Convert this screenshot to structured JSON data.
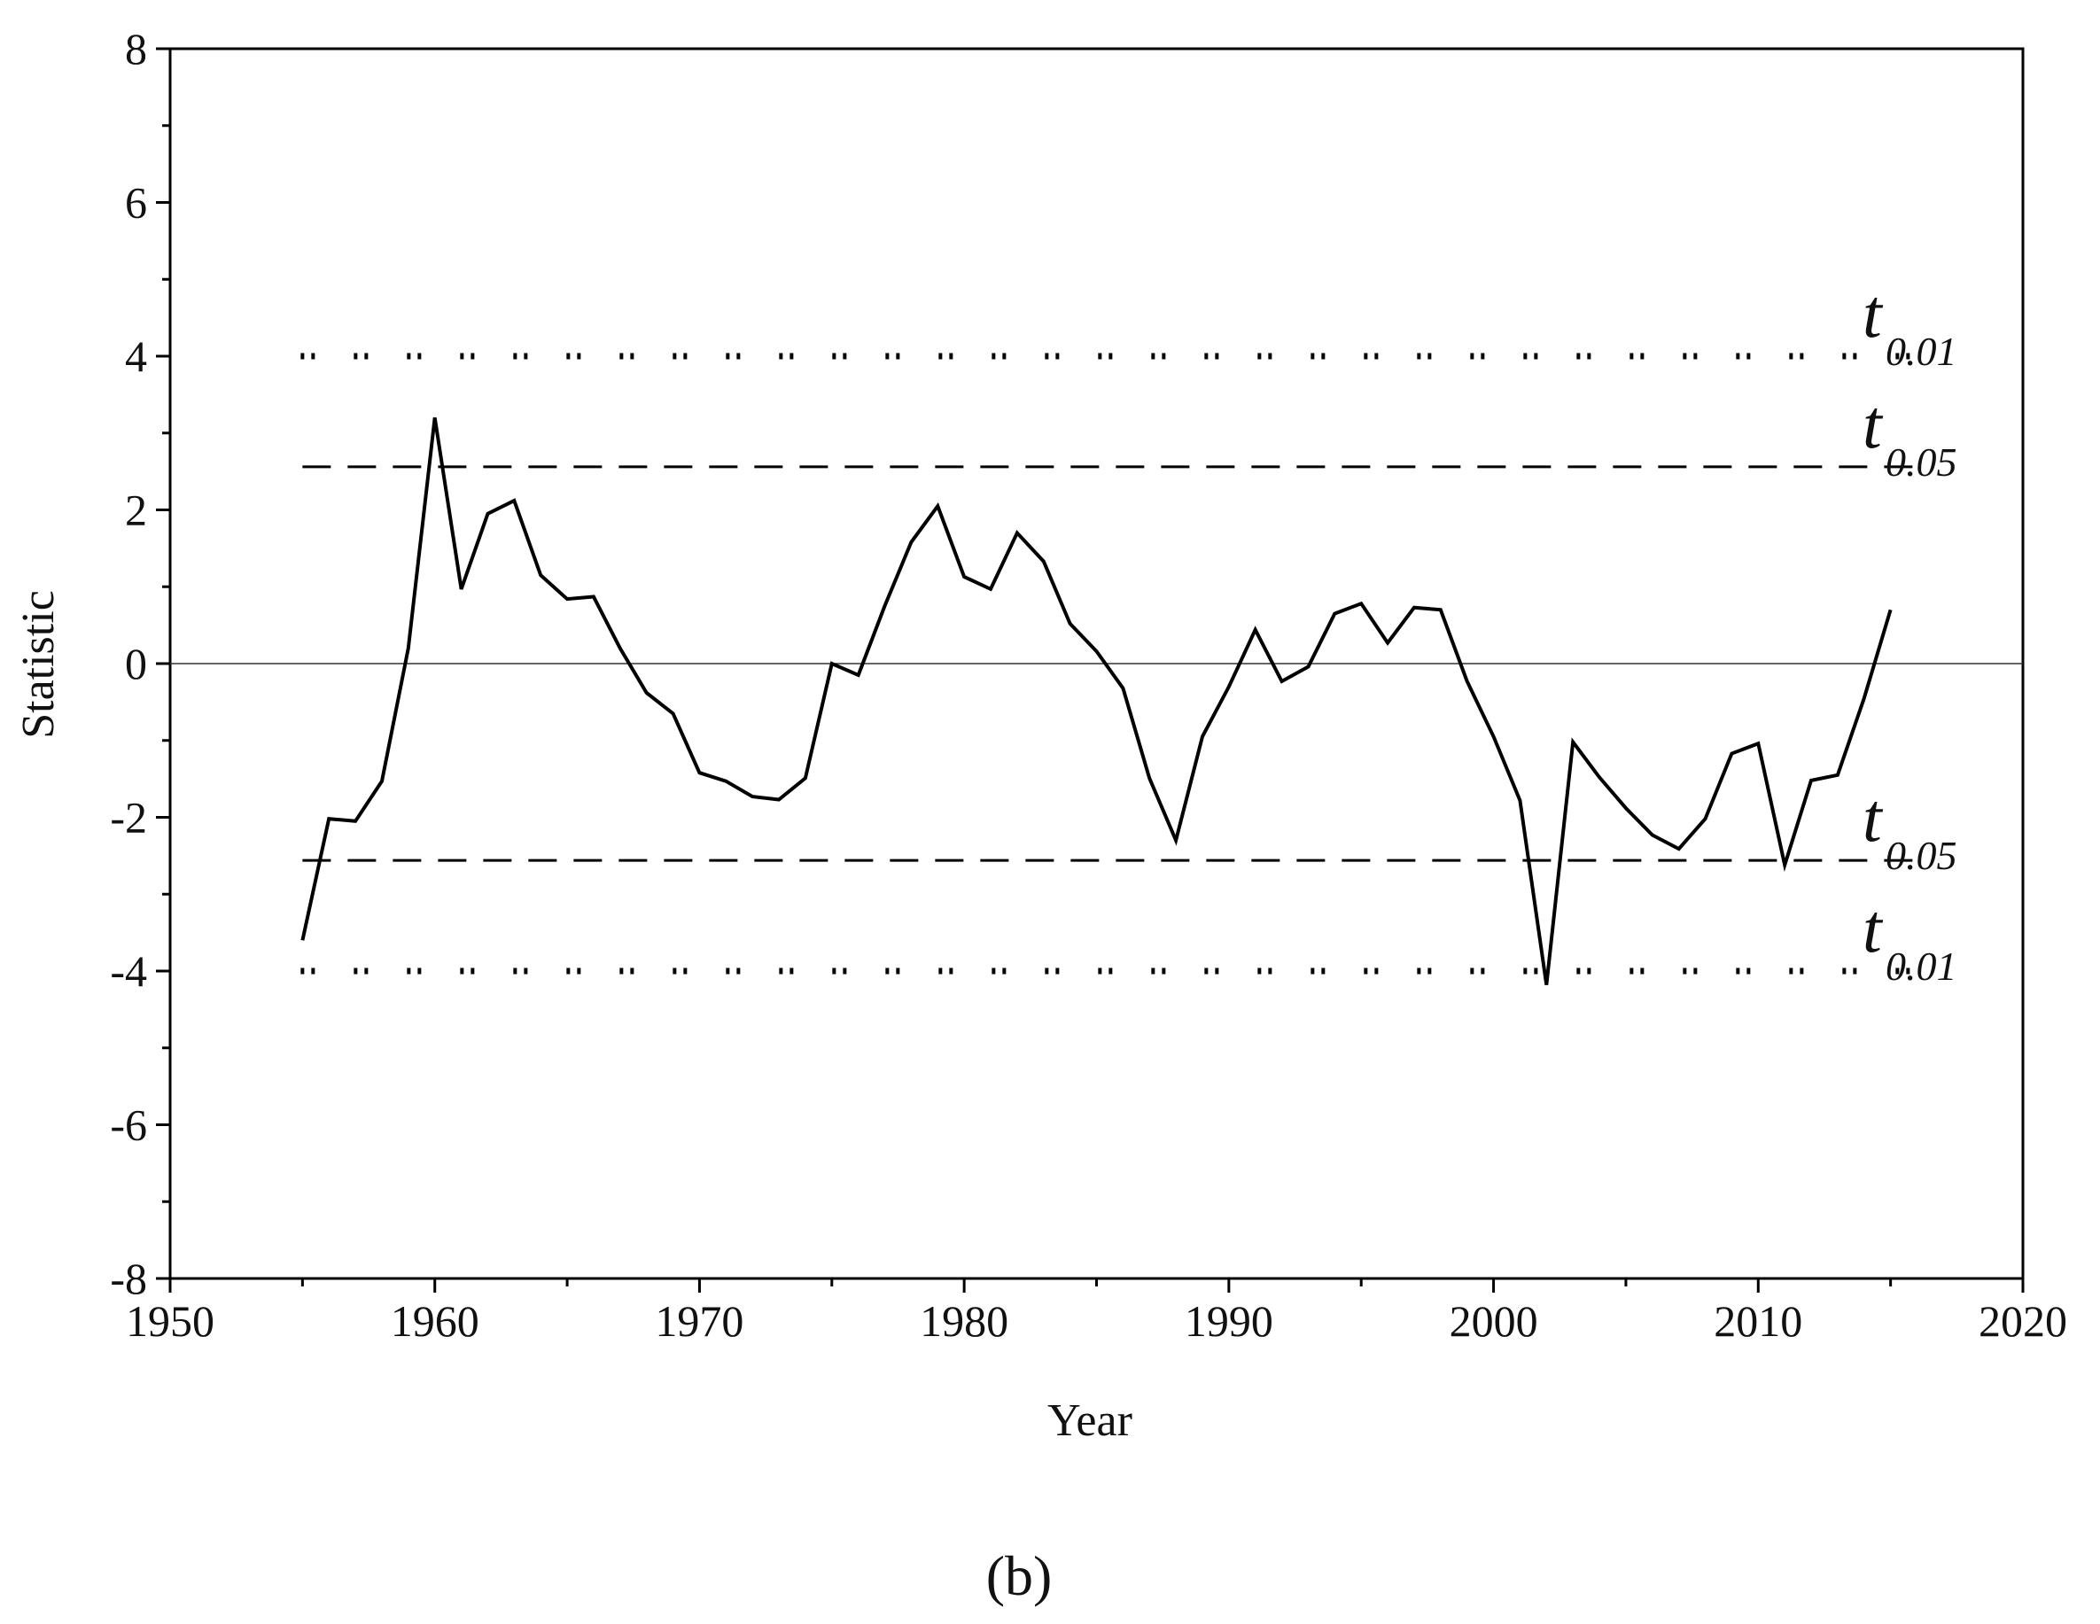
{
  "chart_data": {
    "type": "line",
    "title": "",
    "xlabel": "Year",
    "ylabel": "Statistic",
    "xlim": [
      1950,
      2020
    ],
    "ylim": [
      -8,
      8
    ],
    "x_ticks": [
      1950,
      1960,
      1970,
      1980,
      1990,
      2000,
      2010,
      2020
    ],
    "y_ticks": [
      -8,
      -6,
      -4,
      -2,
      0,
      2,
      4,
      6,
      8
    ],
    "grid": false,
    "legend": "none",
    "zero_line": 0,
    "series": [
      {
        "x": [
          1955,
          1956,
          1957,
          1958,
          1959,
          1960,
          1961,
          1962,
          1963,
          1964,
          1965,
          1966,
          1967,
          1968,
          1969,
          1970,
          1971,
          1972,
          1973,
          1974,
          1975,
          1976,
          1977,
          1978,
          1979,
          1980,
          1981,
          1982,
          1983,
          1984,
          1985,
          1986,
          1987,
          1988,
          1989,
          1990,
          1991,
          1992,
          1993,
          1994,
          1995,
          1996,
          1997,
          1998,
          1999,
          2000,
          2001,
          2002,
          2003,
          2004,
          2005,
          2006,
          2007,
          2008,
          2009,
          2010,
          2011,
          2012,
          2013,
          2014,
          2015
        ],
        "values": [
          -3.6,
          -2.02,
          -2.05,
          -1.53,
          0.2,
          3.2,
          0.97,
          1.95,
          2.12,
          1.15,
          0.84,
          0.87,
          0.2,
          -0.38,
          -0.65,
          -1.42,
          -1.53,
          -1.73,
          -1.77,
          -1.49,
          0.0,
          -0.15,
          0.75,
          1.58,
          2.05,
          1.13,
          0.97,
          1.7,
          1.33,
          0.52,
          0.16,
          -0.32,
          -1.49,
          -2.3,
          -0.95,
          -0.3,
          0.44,
          -0.23,
          -0.04,
          0.65,
          0.78,
          0.27,
          0.73,
          0.7,
          -0.23,
          -0.95,
          -1.78,
          -4.18,
          -1.02,
          -1.48,
          -1.88,
          -2.23,
          -2.41,
          -2.02,
          -1.17,
          -1.04,
          -2.62,
          -1.52,
          -1.45,
          -0.45,
          0.7
        ]
      }
    ],
    "thresholds": [
      {
        "label": "t",
        "subscript": "0.01",
        "value": 4,
        "style": "dotted",
        "color": "#000000"
      },
      {
        "label": "t",
        "subscript": "0.05",
        "value": 2.56,
        "style": "dashed",
        "color": "#000000"
      },
      {
        "label": "t",
        "subscript": "0.05",
        "value": -2.56,
        "style": "dashed",
        "color": "#000000"
      },
      {
        "label": "t",
        "subscript": "0.01",
        "value": -4,
        "style": "dotted",
        "color": "#000000"
      }
    ],
    "line_color": "#000000"
  },
  "panel_label": "(b)"
}
